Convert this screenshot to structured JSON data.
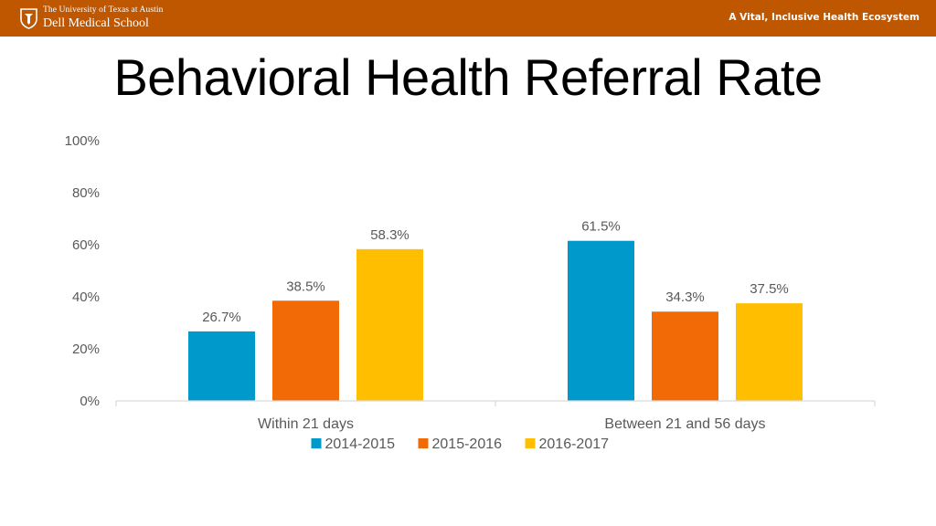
{
  "header": {
    "org_line1": "The University of Texas at Austin",
    "org_line2": "Dell Medical School",
    "tagline": "A Vital, Inclusive Health Ecosystem",
    "brand_color": "#bf5700"
  },
  "slide": {
    "title": "Behavioral Health Referral Rate"
  },
  "chart_data": {
    "type": "bar",
    "categories": [
      "Within 21 days",
      "Between 21 and 56 days"
    ],
    "series": [
      {
        "name": "2014-2015",
        "values": [
          26.7,
          61.5
        ],
        "labels": [
          "26.7%",
          "61.5%"
        ],
        "color": "#0099cc"
      },
      {
        "name": "2015-2016",
        "values": [
          38.5,
          34.3
        ],
        "labels": [
          "38.5%",
          "34.3%"
        ],
        "color": "#f26a06"
      },
      {
        "name": "2016-2017",
        "values": [
          58.3,
          37.5
        ],
        "labels": [
          "58.3%",
          "37.5%"
        ],
        "color": "#ffbf00"
      }
    ],
    "ylim": [
      0,
      100
    ],
    "yticks": [
      0,
      20,
      40,
      60,
      80,
      100
    ],
    "ytick_labels": [
      "0%",
      "20%",
      "40%",
      "60%",
      "80%",
      "100%"
    ],
    "grid": false,
    "legend_position": "bottom",
    "title": "",
    "xlabel": "",
    "ylabel": ""
  }
}
